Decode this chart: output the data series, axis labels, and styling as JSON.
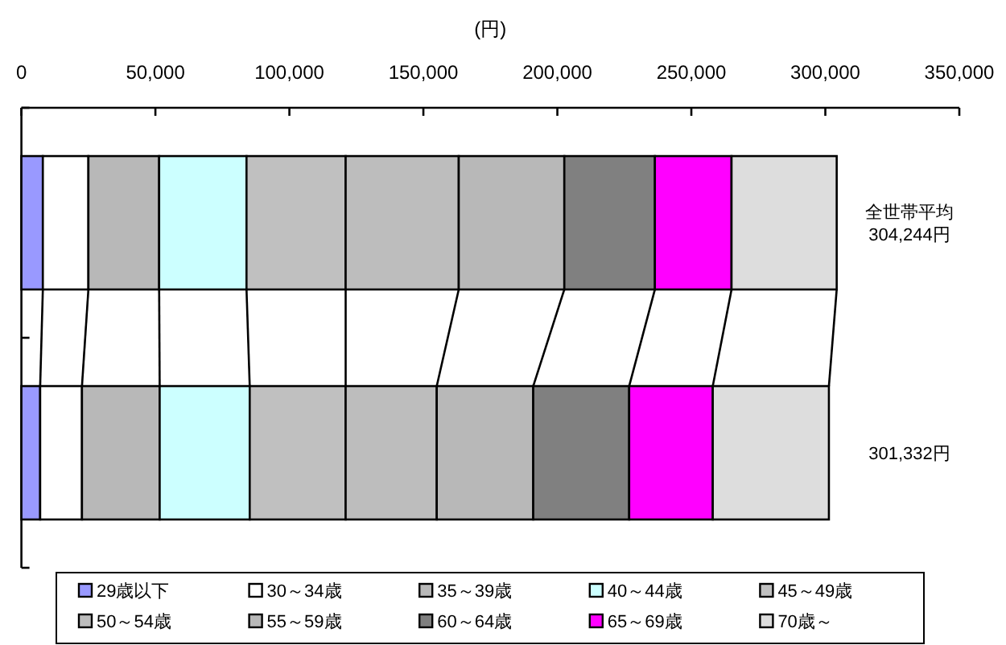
{
  "chart_data": {
    "type": "bar",
    "orientation": "horizontal",
    "stacked": true,
    "xlabel": "(円)",
    "categories": [
      "全世帯平均",
      null
    ],
    "totals": [
      "304,244円",
      "301,332円"
    ],
    "xlim": [
      0,
      350000
    ],
    "xticks": [
      {
        "value": 0,
        "label": "0"
      },
      {
        "value": 50000,
        "label": "50,000"
      },
      {
        "value": 100000,
        "label": "100,000"
      },
      {
        "value": 150000,
        "label": "150,000"
      },
      {
        "value": 200000,
        "label": "200,000"
      },
      {
        "value": 250000,
        "label": "250,000"
      },
      {
        "value": 300000,
        "label": "300,000"
      },
      {
        "value": 350000,
        "label": "350,000"
      }
    ],
    "grid": false,
    "legend": "bottom",
    "series": [
      {
        "name": "29歳以下",
        "color": "#9999ff",
        "values": [
          8000,
          7000
        ]
      },
      {
        "name": "30～34歳",
        "color": "#ffffff",
        "values": [
          17000,
          15600
        ]
      },
      {
        "name": "35～39歳",
        "color": "#b8b8b8",
        "values": [
          26400,
          29000
        ]
      },
      {
        "name": "40～44歳",
        "color": "#ccffff",
        "values": [
          32600,
          33600
        ]
      },
      {
        "name": "45～49歳",
        "color": "#c0c0c0",
        "values": [
          37000,
          35800
        ]
      },
      {
        "name": "50～54歳",
        "color": "#bdbdbd",
        "values": [
          42200,
          34000
        ]
      },
      {
        "name": "55～59歳",
        "color": "#b8b8b8",
        "values": [
          39400,
          36000
        ]
      },
      {
        "name": "60～64歳",
        "color": "#808080",
        "values": [
          33800,
          35800
        ]
      },
      {
        "name": "65～69歳",
        "color": "#ff00ff",
        "values": [
          28600,
          31200
        ]
      },
      {
        "name": "70歳～",
        "color": "#dddddd",
        "values": [
          39244,
          43332
        ]
      }
    ]
  }
}
